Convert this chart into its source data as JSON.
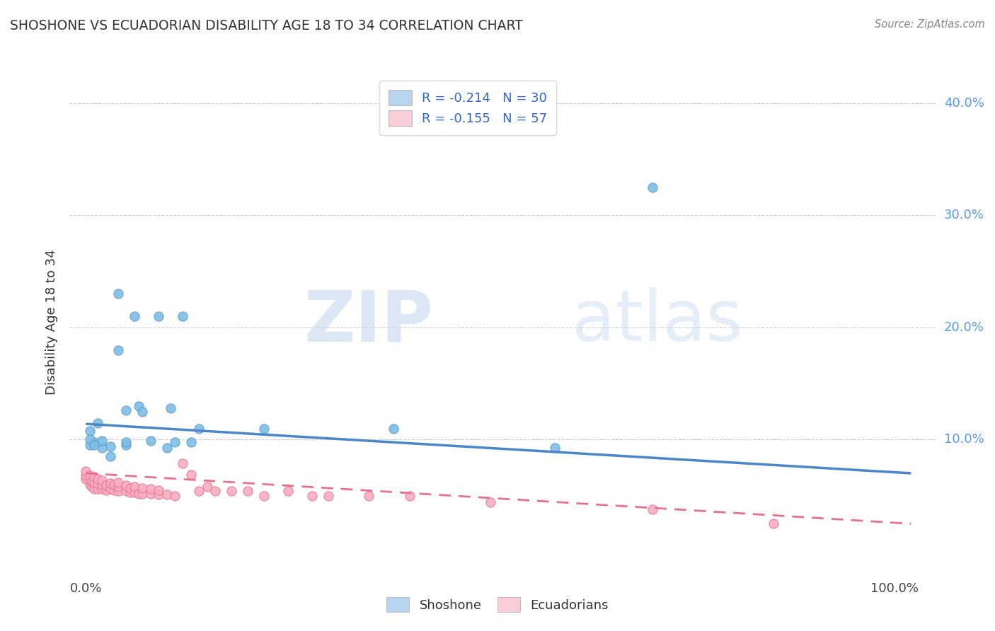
{
  "title": "SHOSHONE VS ECUADORIAN DISABILITY AGE 18 TO 34 CORRELATION CHART",
  "source_text": "Source: ZipAtlas.com",
  "ylabel": "Disability Age 18 to 34",
  "xlim": [
    -0.02,
    1.05
  ],
  "ylim": [
    -0.02,
    0.43
  ],
  "watermark_zip": "ZIP",
  "watermark_atlas": "atlas",
  "legend_items": [
    {
      "label_r": "R = -0.214",
      "label_n": "N = 30",
      "color": "#b8d4ee"
    },
    {
      "label_r": "R = -0.155",
      "label_n": "N = 57",
      "color": "#f9ccd8"
    }
  ],
  "shoshone_scatter": {
    "color": "#7fbde4",
    "edge_color": "#5a9fd4",
    "x": [
      0.005,
      0.005,
      0.01,
      0.015,
      0.02,
      0.02,
      0.03,
      0.03,
      0.04,
      0.04,
      0.05,
      0.05,
      0.05,
      0.06,
      0.065,
      0.07,
      0.08,
      0.09,
      0.1,
      0.105,
      0.11,
      0.12,
      0.13,
      0.14,
      0.22,
      0.38,
      0.58,
      0.7,
      0.005,
      0.01
    ],
    "y": [
      0.095,
      0.108,
      0.098,
      0.115,
      0.093,
      0.099,
      0.085,
      0.094,
      0.18,
      0.23,
      0.095,
      0.098,
      0.126,
      0.21,
      0.13,
      0.125,
      0.099,
      0.21,
      0.093,
      0.128,
      0.098,
      0.21,
      0.098,
      0.11,
      0.11,
      0.11,
      0.093,
      0.325,
      0.1,
      0.095
    ]
  },
  "ecuadorian_scatter": {
    "color": "#f9adc0",
    "edge_color": "#e87898",
    "x": [
      0.0,
      0.0,
      0.0,
      0.005,
      0.005,
      0.005,
      0.008,
      0.008,
      0.01,
      0.01,
      0.01,
      0.015,
      0.015,
      0.015,
      0.02,
      0.02,
      0.02,
      0.025,
      0.025,
      0.03,
      0.03,
      0.035,
      0.035,
      0.04,
      0.04,
      0.04,
      0.05,
      0.05,
      0.055,
      0.055,
      0.06,
      0.06,
      0.065,
      0.07,
      0.07,
      0.08,
      0.08,
      0.09,
      0.09,
      0.1,
      0.11,
      0.12,
      0.13,
      0.14,
      0.15,
      0.16,
      0.18,
      0.2,
      0.22,
      0.25,
      0.28,
      0.3,
      0.35,
      0.4,
      0.5,
      0.7,
      0.85
    ],
    "y": [
      0.065,
      0.068,
      0.072,
      0.06,
      0.064,
      0.068,
      0.058,
      0.063,
      0.056,
      0.062,
      0.067,
      0.056,
      0.061,
      0.065,
      0.056,
      0.06,
      0.064,
      0.055,
      0.059,
      0.056,
      0.061,
      0.055,
      0.06,
      0.054,
      0.058,
      0.062,
      0.054,
      0.059,
      0.053,
      0.057,
      0.053,
      0.058,
      0.052,
      0.052,
      0.057,
      0.052,
      0.056,
      0.051,
      0.055,
      0.051,
      0.05,
      0.079,
      0.069,
      0.054,
      0.058,
      0.054,
      0.054,
      0.054,
      0.05,
      0.054,
      0.05,
      0.05,
      0.05,
      0.05,
      0.044,
      0.038,
      0.025
    ]
  },
  "shoshone_line": {
    "color": "#4a86c8",
    "x_start": 0.0,
    "x_end": 1.02,
    "y_start": 0.114,
    "y_end": 0.07
  },
  "ecuadorian_line": {
    "color": "#e8708a",
    "x_start": 0.0,
    "x_end": 1.02,
    "y_start": 0.07,
    "y_end": 0.025
  },
  "background_color": "#ffffff",
  "grid_color": "#cccccc",
  "y_ticks": [
    0.1,
    0.2,
    0.3,
    0.4
  ],
  "y_tick_labels": [
    "10.0%",
    "20.0%",
    "30.0%",
    "40.0%"
  ],
  "tick_color": "#5599ee"
}
